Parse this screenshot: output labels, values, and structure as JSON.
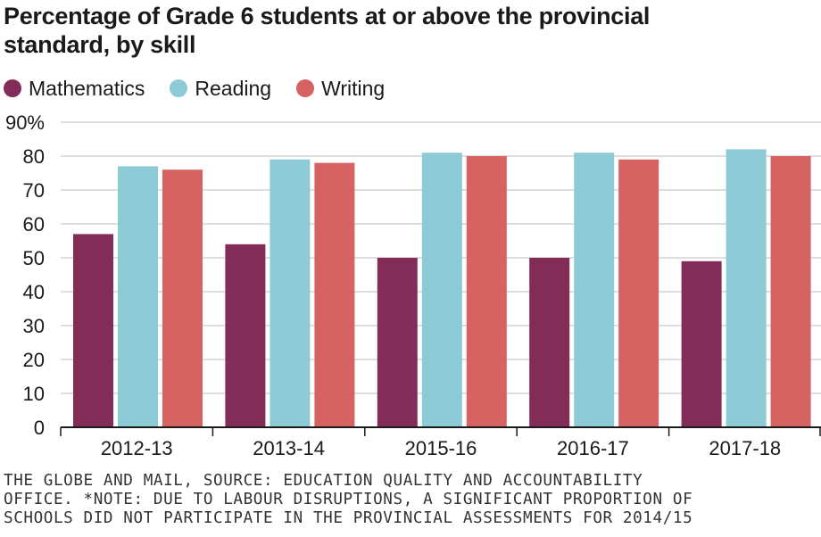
{
  "title_lines": [
    "Percentage of Grade 6 students at or above the provincial",
    "standard, by skill"
  ],
  "source_lines": [
    "THE GLOBE AND MAIL, SOURCE: EDUCATION QUALITY AND ACCOUNTABILITY",
    "OFFICE. *NOTE: DUE TO LABOUR DISRUPTIONS, A SIGNIFICANT PROPORTION OF",
    "SCHOOLS DID NOT PARTICIPATE IN THE PROVINCIAL ASSESSMENTS FOR 2014/15"
  ],
  "chart_data": {
    "type": "bar",
    "title": "Percentage of Grade 6 students at or above the provincial standard, by skill",
    "xlabel": "",
    "ylabel": "",
    "categories": [
      "2012-13",
      "2013-14",
      "2015-16",
      "2016-17",
      "2017-18"
    ],
    "series": [
      {
        "name": "Mathematics",
        "color": "#832c57",
        "values": [
          57,
          54,
          50,
          50,
          49
        ]
      },
      {
        "name": "Reading",
        "color": "#8ccbd5",
        "values": [
          77,
          79,
          81,
          81,
          82
        ]
      },
      {
        "name": "Writing",
        "color": "#d66262",
        "values": [
          76,
          78,
          80,
          79,
          80
        ]
      }
    ],
    "ylim": [
      0,
      90
    ],
    "yticks": [
      0,
      10,
      20,
      30,
      40,
      50,
      60,
      70,
      80,
      90
    ],
    "ytick_labels": [
      "0",
      "10",
      "20",
      "30",
      "40",
      "50",
      "60",
      "70",
      "80",
      "90%"
    ],
    "grid": true,
    "legend_position": "top-left"
  }
}
